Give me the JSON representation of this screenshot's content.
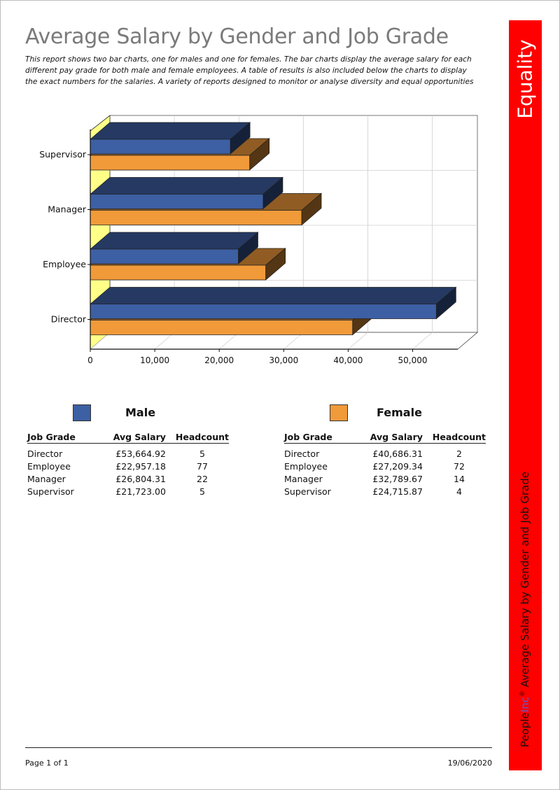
{
  "report": {
    "title": "Average Salary by Gender and Job Grade",
    "description": "This report shows two bar charts, one for males and one for females. The bar charts display the average salary for each different pay grade for both male and female employees. A table of results is also included below the charts to display the exact numbers for the salaries. A variety of reports designed to monitor or analyse diversity and equal opportunities"
  },
  "sidebar": {
    "category": "Equality",
    "brand_people": "People",
    "brand_inc": "Inc",
    "brand_reg": "®",
    "report_name": "Average Salary by Gender and Job Grade"
  },
  "chart_data": {
    "type": "bar",
    "orientation": "horizontal",
    "three_d": true,
    "categories": [
      "Director",
      "Employee",
      "Manager",
      "Supervisor"
    ],
    "series": [
      {
        "name": "Male",
        "values": [
          53664.92,
          22957.18,
          26804.31,
          21723.0
        ]
      },
      {
        "name": "Female",
        "values": [
          40686.31,
          27209.34,
          32789.67,
          24715.87
        ]
      }
    ],
    "x_ticks": [
      "0",
      "10,000",
      "20,000",
      "30,000",
      "40,000",
      "50,000"
    ],
    "xlim": [
      0,
      57000
    ],
    "grid": true,
    "colors": {
      "male": "#3d5fa3",
      "female": "#f09a3a",
      "floor": "#ffff88"
    }
  },
  "legend": {
    "male": "Male",
    "female": "Female"
  },
  "tables": {
    "headers": {
      "grade": "Job Grade",
      "salary": "Avg Salary",
      "count": "Headcount"
    },
    "male": [
      {
        "grade": "Director",
        "salary": "£53,664.92",
        "count": "5"
      },
      {
        "grade": "Employee",
        "salary": "£22,957.18",
        "count": "77"
      },
      {
        "grade": "Manager",
        "salary": "£26,804.31",
        "count": "22"
      },
      {
        "grade": "Supervisor",
        "salary": "£21,723.00",
        "count": "5"
      }
    ],
    "female": [
      {
        "grade": "Director",
        "salary": "£40,686.31",
        "count": "2"
      },
      {
        "grade": "Employee",
        "salary": "£27,209.34",
        "count": "72"
      },
      {
        "grade": "Manager",
        "salary": "£32,789.67",
        "count": "14"
      },
      {
        "grade": "Supervisor",
        "salary": "£24,715.87",
        "count": "4"
      }
    ]
  },
  "footer": {
    "page": "Page 1 of 1",
    "date": "19/06/2020"
  }
}
